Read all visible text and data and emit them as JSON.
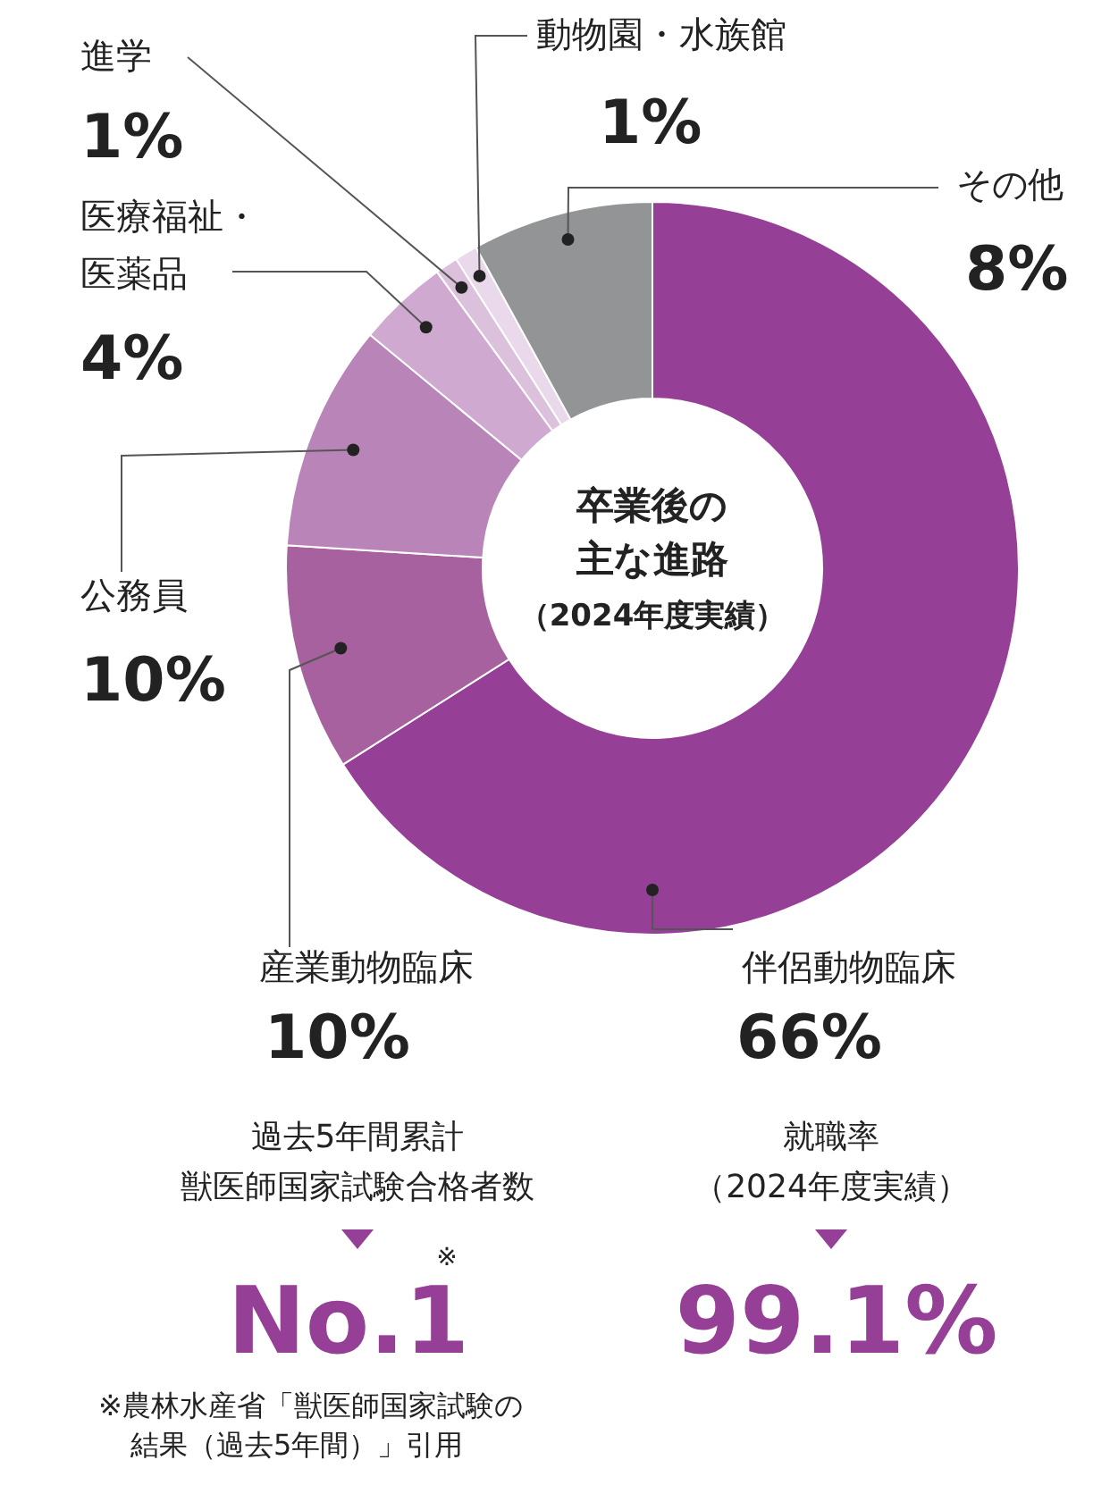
{
  "chart_data": {
    "type": "donut",
    "title": "卒業後の主な進路",
    "subtitle": "（2024年度実績）",
    "categories": [
      "伴侶動物臨床",
      "産業動物臨床",
      "公務員",
      "医療福祉・医薬品",
      "進学",
      "動物園・水族館",
      "その他"
    ],
    "values": [
      66,
      10,
      10,
      4,
      1,
      1,
      8
    ],
    "value_labels": [
      "66%",
      "10%",
      "10%",
      "4%",
      "1%",
      "1%",
      "8%"
    ],
    "colors": [
      "#953f96",
      "#a7619f",
      "#b985b9",
      "#d0a9d1",
      "#dcc1dc",
      "#ead9ea",
      "#939496"
    ],
    "annotations": [
      "過去5年間累計",
      "獣医師国家試験合格者数",
      "No.1",
      "※",
      "就職率",
      "（2024年度実績）",
      "99.1%",
      "※農林水産省「獣医師国家試験の結果（過去5年間）」引用"
    ]
  }
}
